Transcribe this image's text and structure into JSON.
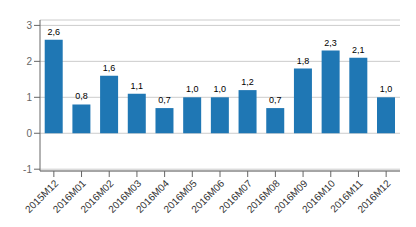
{
  "chart_data": {
    "type": "bar",
    "categories": [
      "2015M12",
      "2016M01",
      "2016M02",
      "2016M03",
      "2016M04",
      "2016M05",
      "2016M06",
      "2016M07",
      "2016M08",
      "2016M09",
      "2016M10",
      "2016M11",
      "2016M12"
    ],
    "values": [
      2.6,
      0.8,
      1.6,
      1.1,
      0.7,
      1.0,
      1.0,
      1.2,
      0.7,
      1.8,
      2.3,
      2.1,
      1.0
    ],
    "value_labels": [
      "2,6",
      "0,8",
      "1,6",
      "1,1",
      "0,7",
      "1,0",
      "1,0",
      "1,2",
      "0,7",
      "1,8",
      "2,3",
      "2,1",
      "1,0"
    ],
    "data_labels": true,
    "color": "#1F77B4",
    "ylim": [
      -1.05,
      3.15
    ],
    "yticks": [
      -1,
      0,
      1,
      2,
      3
    ],
    "grid": true
  }
}
